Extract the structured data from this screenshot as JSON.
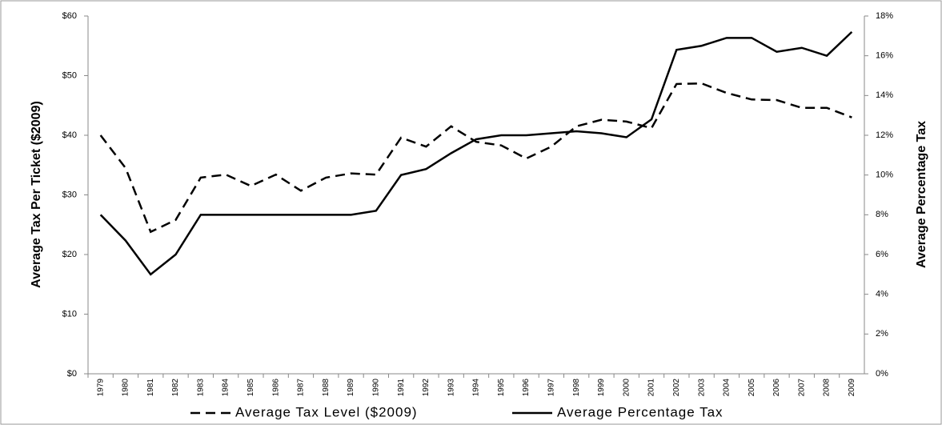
{
  "chart_data": {
    "type": "line",
    "y_label": "Average Tax Per Ticket ($2009)",
    "y2_label": "Average Percentage Tax",
    "categories": [
      "1979",
      "1980",
      "1981",
      "1982",
      "1983",
      "1984",
      "1985",
      "1986",
      "1987",
      "1988",
      "1989",
      "1990",
      "1991",
      "1992",
      "1993",
      "1994",
      "1995",
      "1996",
      "1997",
      "1998",
      "1999",
      "2000",
      "2001",
      "2002",
      "2003",
      "2004",
      "2005",
      "2006",
      "2007",
      "2008",
      "2009"
    ],
    "series": [
      {
        "name": "Average Tax Level ($2009)",
        "color": "#000000",
        "line_style": "dashed",
        "axis": "y",
        "values": [
          40,
          34.5,
          23.8,
          25.8,
          32.9,
          33.4,
          31.5,
          33.4,
          30.7,
          32.9,
          33.6,
          33.4,
          39.6,
          38.1,
          41.5,
          38.9,
          38.3,
          36.1,
          38.1,
          41.5,
          42.6,
          42.3,
          41.2,
          48.6,
          48.7,
          47.1,
          46.0,
          45.9,
          44.6,
          44.6,
          43.0
        ]
      },
      {
        "name": "Average Percentage Tax",
        "color": "#000000",
        "line_style": "solid",
        "axis": "y2",
        "values": [
          8.0,
          6.7,
          5.0,
          6.0,
          8.0,
          8.0,
          8.0,
          8.0,
          8.0,
          8.0,
          8.0,
          8.2,
          10.0,
          10.3,
          11.1,
          11.8,
          12.0,
          12.0,
          12.1,
          12.2,
          12.1,
          11.9,
          12.8,
          16.3,
          16.5,
          16.9,
          16.9,
          16.2,
          16.4,
          16.0,
          17.2
        ]
      }
    ],
    "ylim": [
      0,
      60
    ],
    "yticks": [
      {
        "value": 0,
        "label": "$0"
      },
      {
        "value": 10,
        "label": "$10"
      },
      {
        "value": 20,
        "label": "$20"
      },
      {
        "value": 30,
        "label": "$30"
      },
      {
        "value": 40,
        "label": "$40"
      },
      {
        "value": 50,
        "label": "$50"
      },
      {
        "value": 60,
        "label": "$60"
      }
    ],
    "y2lim": [
      0,
      18
    ],
    "y2ticks": [
      {
        "value": 0,
        "label": "0%"
      },
      {
        "value": 2,
        "label": "2%"
      },
      {
        "value": 4,
        "label": "4%"
      },
      {
        "value": 6,
        "label": "6%"
      },
      {
        "value": 8,
        "label": "8%"
      },
      {
        "value": 10,
        "label": "10%"
      },
      {
        "value": 12,
        "label": "12%"
      },
      {
        "value": 14,
        "label": "14%"
      },
      {
        "value": 16,
        "label": "16%"
      },
      {
        "value": 18,
        "label": "18%"
      }
    ],
    "grid": false,
    "legend": "bottom"
  }
}
